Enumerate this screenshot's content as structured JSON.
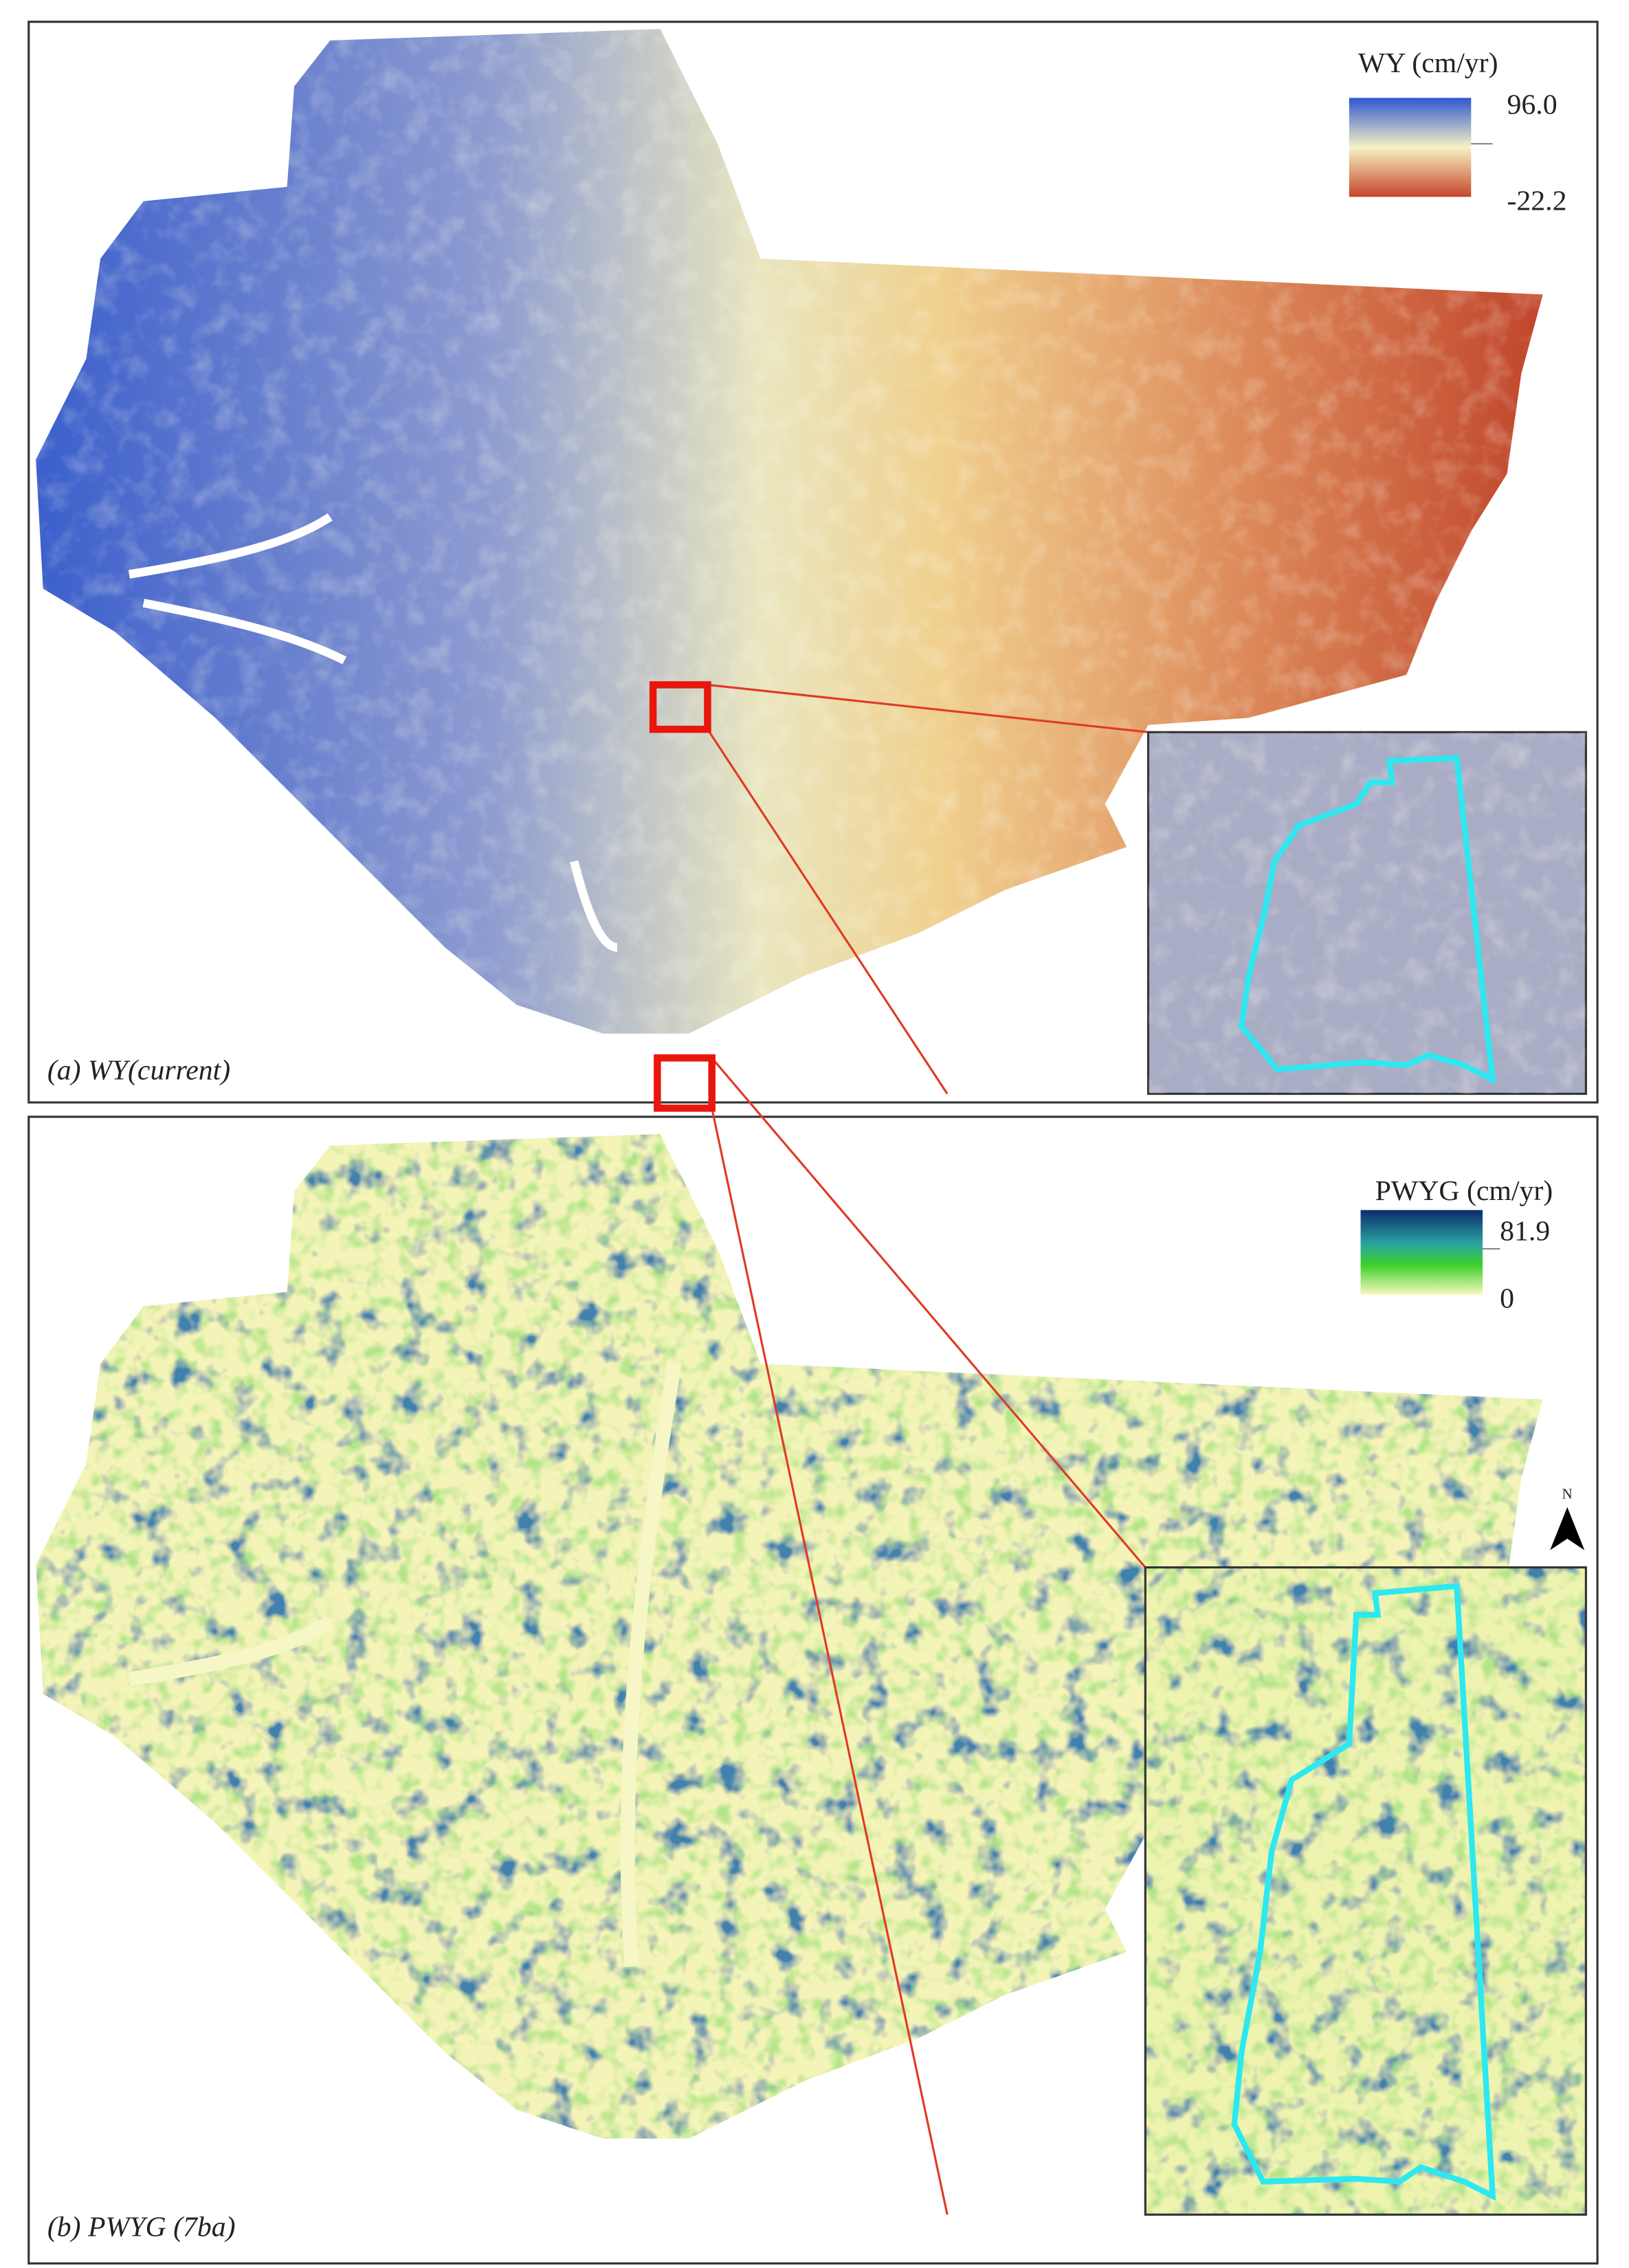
{
  "panels": [
    {
      "caption": "(a) WY(current)",
      "legend": {
        "title": "WY (cm/yr)",
        "max": "96.0",
        "min": "-22.2"
      }
    },
    {
      "caption": "(b) PWYG (7ba)",
      "legend": {
        "title": "PWYG (cm/yr)",
        "max": "81.9",
        "min": "0"
      }
    }
  ],
  "north": "N"
}
